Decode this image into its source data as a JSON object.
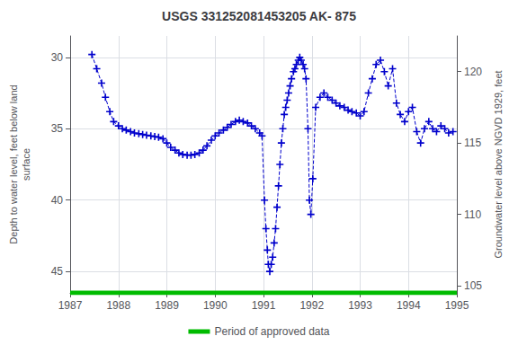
{
  "chart_data": {
    "type": "line",
    "title": "USGS 331252081453205 AK- 875",
    "ylabel": "Depth to water level, feet below land\nsurface",
    "y2label": "Groundwater level above NGVD 1929, feet",
    "xlim": [
      1987.0,
      1995.0
    ],
    "xticks": [
      1987,
      1988,
      1989,
      1990,
      1991,
      1992,
      1993,
      1994,
      1995
    ],
    "ylim": [
      46.5,
      28.5
    ],
    "yticks": [
      30,
      35,
      40,
      45
    ],
    "y2lim": [
      104.5,
      122.5
    ],
    "y2ticks": [
      120,
      115,
      110,
      105
    ],
    "grid": true,
    "legend": "bottom",
    "x": [
      1987.45,
      1987.55,
      1987.65,
      1987.73,
      1987.82,
      1987.9,
      1988.0,
      1988.08,
      1988.16,
      1988.25,
      1988.33,
      1988.42,
      1988.5,
      1988.58,
      1988.67,
      1988.75,
      1988.83,
      1988.92,
      1989.0,
      1989.08,
      1989.17,
      1989.25,
      1989.33,
      1989.42,
      1989.5,
      1989.58,
      1989.67,
      1989.75,
      1989.83,
      1989.92,
      1990.0,
      1990.08,
      1990.17,
      1990.25,
      1990.33,
      1990.42,
      1990.5,
      1990.58,
      1990.67,
      1990.75,
      1990.83,
      1990.92,
      1990.97,
      1991.02,
      1991.05,
      1991.08,
      1991.1,
      1991.13,
      1991.16,
      1991.19,
      1991.22,
      1991.25,
      1991.28,
      1991.31,
      1991.34,
      1991.37,
      1991.4,
      1991.43,
      1991.46,
      1991.49,
      1991.52,
      1991.55,
      1991.58,
      1991.62,
      1991.65,
      1991.68,
      1991.72,
      1991.75,
      1991.78,
      1991.82,
      1991.85,
      1991.88,
      1991.92,
      1991.95,
      1991.98,
      1992.02,
      1992.08,
      1992.17,
      1992.25,
      1992.33,
      1992.42,
      1992.5,
      1992.58,
      1992.67,
      1992.75,
      1992.83,
      1992.92,
      1993.0,
      1993.08,
      1993.17,
      1993.25,
      1993.33,
      1993.42,
      1993.5,
      1993.58,
      1993.67,
      1993.75,
      1993.83,
      1993.92,
      1994.0,
      1994.08,
      1994.17,
      1994.25,
      1994.33,
      1994.42,
      1994.5,
      1994.58,
      1994.67,
      1994.75,
      1994.83,
      1994.92
    ],
    "series": [
      {
        "color": "#0000cc",
        "marker": "+",
        "line_style": "dashed",
        "values": [
          29.8,
          30.8,
          31.8,
          32.8,
          33.8,
          34.5,
          34.8,
          35.0,
          35.1,
          35.2,
          35.3,
          35.35,
          35.4,
          35.45,
          35.5,
          35.55,
          35.6,
          35.7,
          36.0,
          36.3,
          36.5,
          36.7,
          36.8,
          36.85,
          36.85,
          36.8,
          36.7,
          36.5,
          36.2,
          35.8,
          35.5,
          35.3,
          35.1,
          34.9,
          34.7,
          34.5,
          34.4,
          34.5,
          34.6,
          34.8,
          35.0,
          35.3,
          35.5,
          40.0,
          42.0,
          43.5,
          44.5,
          45.0,
          44.5,
          44.0,
          43.0,
          42.0,
          40.5,
          39.0,
          37.5,
          36.0,
          35.0,
          34.0,
          33.5,
          33.0,
          32.5,
          32.0,
          31.5,
          31.0,
          30.8,
          30.5,
          30.2,
          30.0,
          30.2,
          30.5,
          30.8,
          31.5,
          35.0,
          40.0,
          41.0,
          38.5,
          33.5,
          32.8,
          32.5,
          32.8,
          33.0,
          33.2,
          33.4,
          33.5,
          33.7,
          33.8,
          33.9,
          34.1,
          33.8,
          32.5,
          31.5,
          30.5,
          30.2,
          31.0,
          32.0,
          30.8,
          33.2,
          34.0,
          34.5,
          33.8,
          33.5,
          35.2,
          36.0,
          35.0,
          34.5,
          35.0,
          35.2,
          34.8,
          35.0,
          35.3,
          35.2
        ]
      },
      {
        "name": "Period of approved data",
        "color": "#00bb00",
        "line_style": "solid",
        "x": [
          1987.0,
          1995.0
        ],
        "values": [
          46.5,
          46.5
        ]
      }
    ]
  }
}
